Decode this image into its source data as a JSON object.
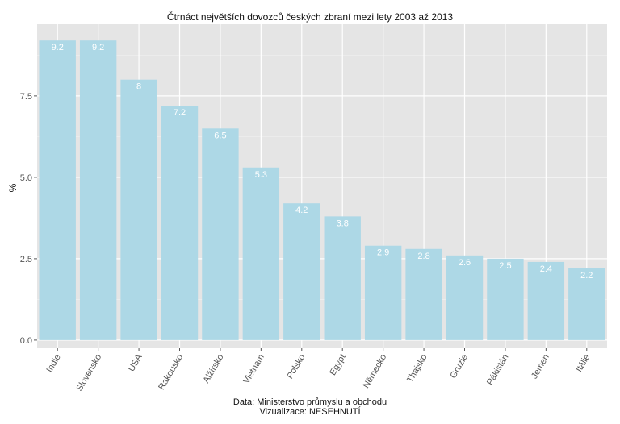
{
  "chart_data": {
    "type": "bar",
    "title": "Čtrnáct největších dovozců českých zbraní mezi lety 2003 až 2013",
    "xlabel": "",
    "ylabel": "%",
    "categories": [
      "Indie",
      "Slovensko",
      "USA",
      "Rakousko",
      "Alžírsko",
      "Vietnam",
      "Polsko",
      "Egypt",
      "Německo",
      "Thajsko",
      "Gruzie",
      "Pákistán",
      "Jemen",
      "Itálie"
    ],
    "values": [
      9.2,
      9.2,
      8,
      7.2,
      6.5,
      5.3,
      4.2,
      3.8,
      2.9,
      2.8,
      2.6,
      2.5,
      2.4,
      2.2
    ],
    "value_labels": [
      "9.2",
      "9.2",
      "8",
      "7.2",
      "6.5",
      "5.3",
      "4.2",
      "3.8",
      "2.9",
      "2.8",
      "2.6",
      "2.5",
      "2.4",
      "2.2"
    ],
    "yticks": [
      "0.0",
      "2.5",
      "5.0",
      "7.5"
    ],
    "ytick_values": [
      0,
      2.5,
      5,
      7.5
    ],
    "ylim": [
      -0.25,
      9.7
    ],
    "grid": true,
    "bar_color": "#add8e6",
    "panel_color": "#e5e5e5",
    "label_color": "#ffffff"
  },
  "caption": {
    "line1": "Data: Ministerstvo průmyslu a obchodu",
    "line2": "Vizualizace: NESEHNUTÍ"
  }
}
